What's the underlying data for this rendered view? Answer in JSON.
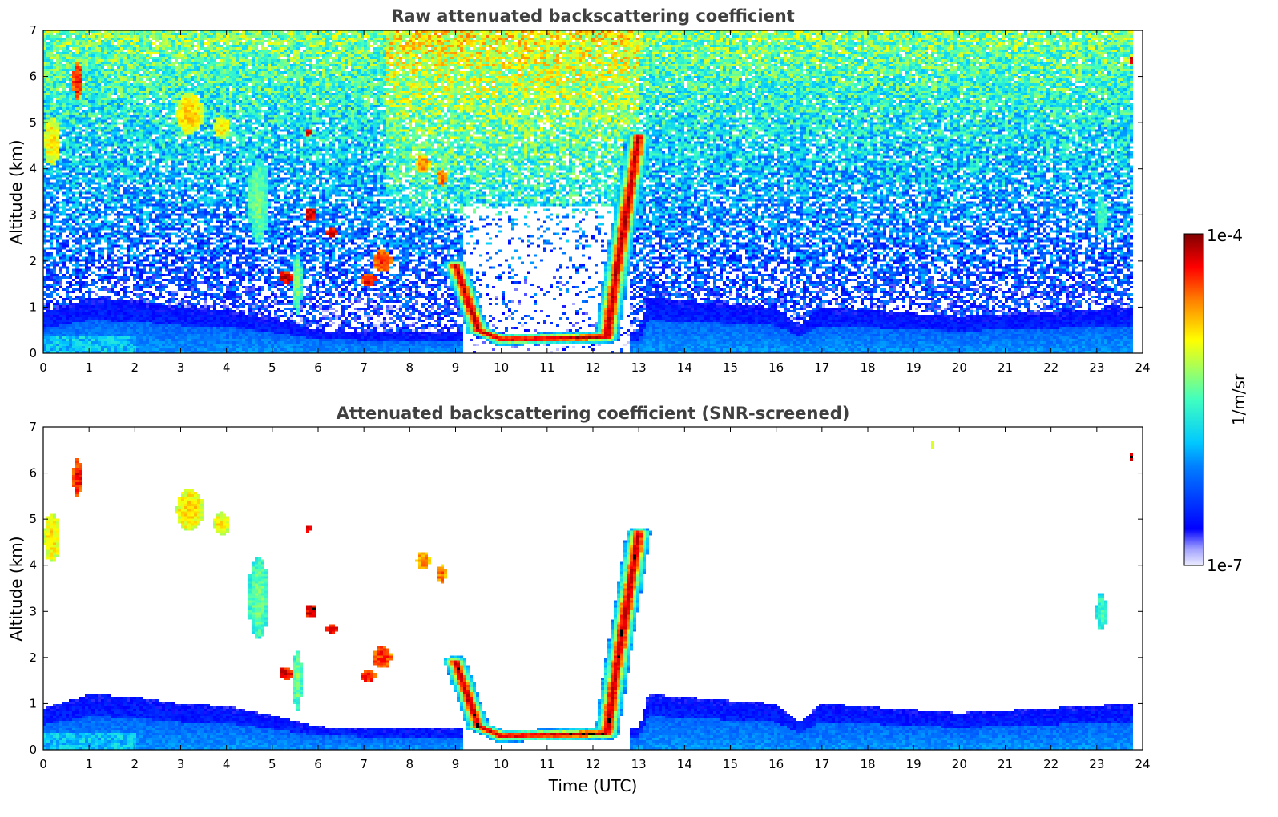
{
  "chart_data": [
    {
      "type": "heatmap",
      "title": "Raw attenuated backscattering coefficient",
      "xlabel": "",
      "ylabel": "Altitude (km)",
      "xlim": [
        0,
        24
      ],
      "ylim": [
        0,
        7
      ],
      "xticks": [
        0,
        1,
        2,
        3,
        4,
        5,
        6,
        7,
        8,
        9,
        10,
        11,
        12,
        13,
        14,
        15,
        16,
        17,
        18,
        19,
        20,
        21,
        22,
        23,
        24
      ],
      "yticks": [
        0,
        1,
        2,
        3,
        4,
        5,
        6,
        7
      ],
      "data_end_time": 23.8,
      "screened": false
    },
    {
      "type": "heatmap",
      "title": "Attenuated backscattering coefficient (SNR-screened)",
      "xlabel": "Time (UTC)",
      "ylabel": "Altitude (km)",
      "xlim": [
        0,
        24
      ],
      "ylim": [
        0,
        7
      ],
      "xticks": [
        0,
        1,
        2,
        3,
        4,
        5,
        6,
        7,
        8,
        9,
        10,
        11,
        12,
        13,
        14,
        15,
        16,
        17,
        18,
        19,
        20,
        21,
        22,
        23,
        24
      ],
      "yticks": [
        0,
        1,
        2,
        3,
        4,
        5,
        6,
        7
      ],
      "data_end_time": 23.8,
      "screened": true
    }
  ],
  "colorbar": {
    "label": "1/m/sr",
    "min_label": "1e-7",
    "max_label": "1e-4",
    "colormap": "jet",
    "scale": "log"
  },
  "features": {
    "boundary_layer": [
      [
        0,
        0.9
      ],
      [
        1,
        1.2
      ],
      [
        2,
        1.15
      ],
      [
        3,
        1.0
      ],
      [
        4,
        0.95
      ],
      [
        5,
        0.75
      ],
      [
        6,
        0.5
      ],
      [
        8,
        0.45
      ],
      [
        9,
        0.45
      ],
      [
        13,
        0.45
      ],
      [
        13.2,
        1.2
      ],
      [
        16,
        1.0
      ],
      [
        16.5,
        0.6
      ],
      [
        17,
        1.0
      ],
      [
        20,
        0.8
      ],
      [
        23.8,
        1.0
      ]
    ],
    "low_cloud": [
      [
        9.0,
        1.9
      ],
      [
        9.5,
        0.5
      ],
      [
        10,
        0.3
      ],
      [
        12.3,
        0.35
      ],
      [
        12.5,
        1.7
      ],
      [
        13.0,
        4.7
      ]
    ],
    "cloud_patches": [
      {
        "x": 0.2,
        "y": 4.6,
        "w": 0.35,
        "h": 1.1,
        "v": 0.7
      },
      {
        "x": 0.75,
        "y": 5.9,
        "w": 0.2,
        "h": 0.8,
        "v": 0.9
      },
      {
        "x": 3.2,
        "y": 5.2,
        "w": 0.6,
        "h": 0.9,
        "v": 0.72
      },
      {
        "x": 3.9,
        "y": 4.9,
        "w": 0.35,
        "h": 0.5,
        "v": 0.7
      },
      {
        "x": 4.7,
        "y": 3.3,
        "w": 0.45,
        "h": 1.8,
        "v": 0.55
      },
      {
        "x": 5.3,
        "y": 1.65,
        "w": 0.3,
        "h": 0.25,
        "v": 0.95
      },
      {
        "x": 5.55,
        "y": 1.5,
        "w": 0.2,
        "h": 1.3,
        "v": 0.55
      },
      {
        "x": 5.8,
        "y": 4.8,
        "w": 0.1,
        "h": 0.2,
        "v": 0.95
      },
      {
        "x": 5.85,
        "y": 3.0,
        "w": 0.25,
        "h": 0.3,
        "v": 0.95
      },
      {
        "x": 6.3,
        "y": 2.6,
        "w": 0.25,
        "h": 0.2,
        "v": 0.95
      },
      {
        "x": 7.4,
        "y": 2.0,
        "w": 0.4,
        "h": 0.5,
        "v": 0.88
      },
      {
        "x": 7.1,
        "y": 1.6,
        "w": 0.3,
        "h": 0.3,
        "v": 0.92
      },
      {
        "x": 8.3,
        "y": 4.1,
        "w": 0.3,
        "h": 0.4,
        "v": 0.8
      },
      {
        "x": 8.7,
        "y": 3.8,
        "w": 0.2,
        "h": 0.4,
        "v": 0.82
      },
      {
        "x": 12.8,
        "y": 3.8,
        "w": 0.25,
        "h": 1.6,
        "v": 0.85
      },
      {
        "x": 19.4,
        "y": 6.6,
        "w": 0.1,
        "h": 0.2,
        "v": 0.68
      },
      {
        "x": 23.1,
        "y": 3.0,
        "w": 0.25,
        "h": 0.8,
        "v": 0.5
      },
      {
        "x": 23.8,
        "y": 6.35,
        "w": 0.15,
        "h": 0.15,
        "v": 0.98
      }
    ]
  }
}
